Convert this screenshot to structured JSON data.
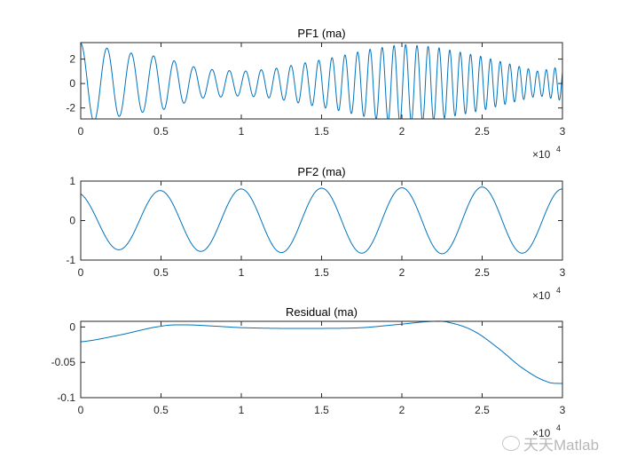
{
  "chart_data": [
    {
      "type": "line",
      "title": "PF1 (ma)",
      "xlabel": "",
      "ylabel": "",
      "x_range": [
        0,
        3
      ],
      "x_ticks": [
        "0",
        "0.5",
        "1",
        "1.5",
        "2",
        "2.5",
        "3"
      ],
      "x_exponent": "×10",
      "x_exponent_power": "4",
      "ylim": [
        -2.9,
        3.35
      ],
      "y_ticks": [
        "2",
        "0",
        "-2"
      ],
      "y_tick_values": [
        2,
        0,
        -2
      ],
      "color": "#0072BD",
      "series": [
        {
          "name": "PF1",
          "model": "chirp",
          "start_phase": "peak",
          "period_points": {
            "x": [
              0,
              0.5,
              1,
              1.5,
              2,
              2.5,
              3
            ],
            "period": [
              0.17,
              0.13,
              0.1,
              0.083,
              0.072,
              0.062,
              0.053
            ]
          },
          "amplitude_points": {
            "x": [
              0,
              0.2,
              0.35,
              0.5,
              0.62,
              0.75,
              1.0,
              1.2,
              1.4,
              1.6,
              1.8,
              2.0,
              2.2,
              2.5,
              2.7,
              2.85,
              3.0
            ],
            "amp": [
              3.3,
              2.8,
              2.4,
              2.2,
              1.7,
              1.2,
              1.0,
              1.2,
              1.7,
              2.2,
              2.8,
              3.2,
              3.0,
              2.2,
              1.5,
              1.0,
              1.4
            ]
          }
        }
      ]
    },
    {
      "type": "line",
      "title": "PF2 (ma)",
      "xlabel": "",
      "ylabel": "",
      "x_range": [
        0,
        3
      ],
      "x_ticks": [
        "0",
        "0.5",
        "1",
        "1.5",
        "2",
        "2.5",
        "3"
      ],
      "x_exponent": "×10",
      "x_exponent_power": "4",
      "ylim": [
        -1,
        1
      ],
      "y_ticks": [
        "1",
        "0",
        "-1"
      ],
      "y_tick_values": [
        1,
        0,
        -1
      ],
      "color": "#0072BD",
      "series": [
        {
          "name": "PF2",
          "model": "sinusoid",
          "period": 0.5,
          "first_peak_x": 0.5,
          "amplitude_points": {
            "x": [
              0,
              0.5,
              1,
              1.5,
              2,
              2.5,
              3
            ],
            "amp": [
              0.72,
              0.76,
              0.8,
              0.82,
              0.83,
              0.85,
              0.8
            ]
          }
        }
      ]
    },
    {
      "type": "line",
      "title": "Residual (ma)",
      "xlabel": "",
      "ylabel": "",
      "x_range": [
        0,
        3
      ],
      "x_ticks": [
        "0",
        "0.5",
        "1",
        "1.5",
        "2",
        "2.5",
        "3"
      ],
      "x_exponent": "×10",
      "x_exponent_power": "4",
      "ylim": [
        -0.1,
        0.008
      ],
      "y_ticks": [
        "0",
        "-0.05",
        "-0.1"
      ],
      "y_tick_values": [
        0,
        -0.05,
        -0.1
      ],
      "color": "#0072BD",
      "series": [
        {
          "name": "Residual",
          "x": [
            0,
            0.25,
            0.5,
            0.65,
            0.85,
            1.0,
            1.25,
            1.5,
            1.75,
            2.0,
            2.2,
            2.3,
            2.45,
            2.6,
            2.75,
            2.9,
            3.0
          ],
          "y": [
            -0.021,
            -0.011,
            0.001,
            0.003,
            0.001,
            -0.001,
            -0.002,
            -0.002,
            -0.001,
            0.004,
            0.008,
            0.006,
            -0.006,
            -0.03,
            -0.058,
            -0.077,
            -0.08
          ]
        }
      ]
    }
  ],
  "watermark": {
    "text": "天天Matlab",
    "icon": "wechat-icon"
  }
}
